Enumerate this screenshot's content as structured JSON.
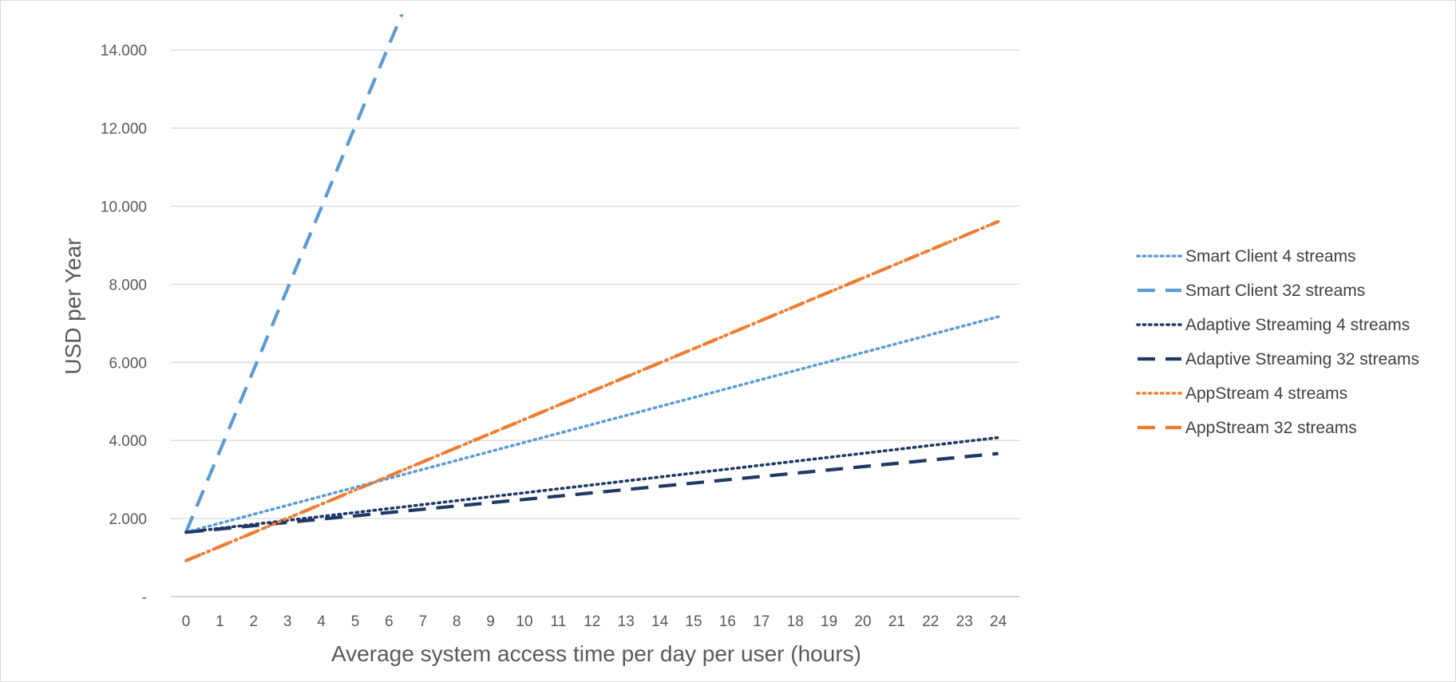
{
  "chart_data": {
    "type": "line",
    "title": "",
    "xlabel": "Average system access time per day per user (hours)",
    "ylabel": "USD per Year",
    "x": [
      0,
      1,
      2,
      3,
      4,
      5,
      6,
      7,
      8,
      9,
      10,
      11,
      12,
      13,
      14,
      15,
      16,
      17,
      18,
      19,
      20,
      21,
      22,
      23,
      24
    ],
    "x_tick_labels": [
      "0",
      "1",
      "2",
      "3",
      "4",
      "5",
      "6",
      "7",
      "8",
      "9",
      "10",
      "11",
      "12",
      "13",
      "14",
      "15",
      "16",
      "17",
      "18",
      "19",
      "20",
      "21",
      "22",
      "23",
      "24"
    ],
    "ylim": [
      0,
      15000
    ],
    "y_ticks": [
      0,
      2000,
      4000,
      6000,
      8000,
      10000,
      12000,
      14000
    ],
    "y_tick_labels": [
      "-",
      "2.000",
      "4.000",
      "6.000",
      "8.000",
      "10.000",
      "12.000",
      "14.000"
    ],
    "grid": true,
    "legend_position": "right",
    "series": [
      {
        "name": "Smart Client 4 streams",
        "color": "#5b9bd5",
        "dash": "dot",
        "start": 1650,
        "slope": 230
      },
      {
        "name": "Smart Client 32 streams",
        "color": "#5b9bd5",
        "dash": "dash",
        "start": 1650,
        "slope": 2080
      },
      {
        "name": "Adaptive Streaming 4 streams",
        "color": "#1f3864",
        "dash": "dot",
        "start": 1650,
        "slope": 101
      },
      {
        "name": "Adaptive Streaming 32 streams",
        "color": "#1f3864",
        "dash": "dash",
        "start": 1650,
        "slope": 84
      },
      {
        "name": "AppStream 4 streams",
        "color": "#ed7d31",
        "dash": "dot",
        "start": 920,
        "slope": 362
      },
      {
        "name": "AppStream 32 streams",
        "color": "#ed7d31",
        "dash": "dashdot",
        "start": 920,
        "slope": 362
      }
    ]
  }
}
